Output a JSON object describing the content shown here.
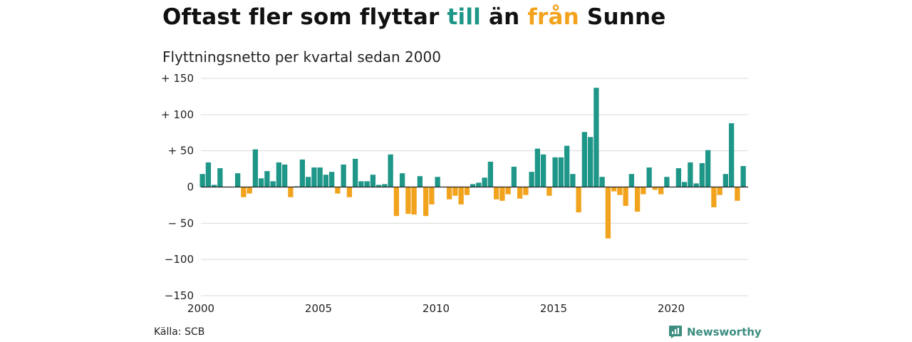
{
  "header": {
    "title_part1": "Oftast fler som flyttar ",
    "title_till": "till",
    "title_mid": " än ",
    "title_fran": "från",
    "title_end": " Sunne",
    "subtitle": "Flyttningsnetto per kvartal sedan 2000"
  },
  "footer": {
    "source": "Källa: SCB",
    "brand": "Newsworthy",
    "brand_icon": "newsworthy-logo-icon"
  },
  "colors": {
    "positive": "#1e9688",
    "negative": "#f2a31d",
    "brand": "#3c8d80",
    "grid": "#d9d9d9"
  },
  "chart_data": {
    "type": "bar",
    "x_start": 2000,
    "periods_per_year": 4,
    "ylim": [
      -150,
      150
    ],
    "yticks": [
      {
        "value": 150,
        "label": "+ 150"
      },
      {
        "value": 100,
        "label": "+ 100"
      },
      {
        "value": 50,
        "label": "+  50"
      },
      {
        "value": 0,
        "label": "0"
      },
      {
        "value": -50,
        "label": "− 50"
      },
      {
        "value": -100,
        "label": "−100"
      },
      {
        "value": -150,
        "label": "−150"
      }
    ],
    "xticks": [
      "2000",
      "2005",
      "2010",
      "2015",
      "2020"
    ],
    "grid": true,
    "values": [
      18,
      34,
      3,
      26,
      0,
      0,
      19,
      -14,
      -9,
      52,
      12,
      22,
      8,
      34,
      31,
      -14,
      1,
      38,
      14,
      27,
      27,
      17,
      21,
      -9,
      31,
      -14,
      39,
      8,
      8,
      17,
      3,
      4,
      45,
      -40,
      19,
      -37,
      -38,
      15,
      -40,
      -24,
      14,
      0,
      -17,
      -12,
      -24,
      -11,
      4,
      6,
      13,
      35,
      -17,
      -19,
      -10,
      28,
      -16,
      -11,
      21,
      53,
      45,
      -12,
      41,
      41,
      57,
      18,
      -35,
      76,
      69,
      137,
      14,
      -71,
      -6,
      -11,
      -26,
      18,
      -34,
      -10,
      27,
      -4,
      -10,
      14,
      0,
      26,
      7,
      34,
      5,
      33,
      51,
      -28,
      -11,
      18,
      88,
      -19,
      29
    ]
  }
}
